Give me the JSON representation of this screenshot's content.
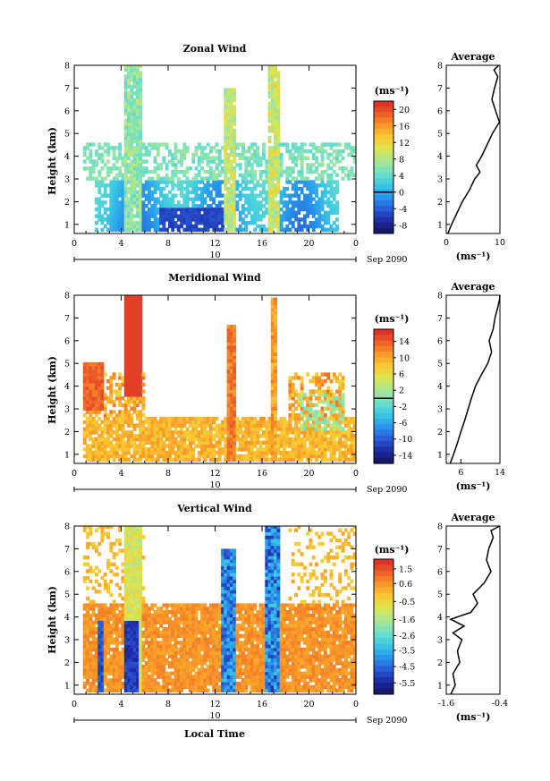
{
  "chart_data": [
    {
      "type": "heatmap",
      "title": "Zonal Wind",
      "ylabel": "Height (km)",
      "x_ticks": [
        "0",
        "4",
        "8",
        "12",
        "16",
        "20",
        "0"
      ],
      "x_range_hours": [
        0,
        24
      ],
      "date_ticks": [
        "10"
      ],
      "date_suffix": "Sep 2090",
      "ylim": [
        0.6,
        8
      ],
      "y_ticks": [
        "1",
        "2",
        "3",
        "4",
        "5",
        "6",
        "7",
        "8"
      ],
      "colorbar": {
        "unit": "(ms⁻¹)",
        "range": [
          -10,
          22
        ],
        "ticks": [
          "20",
          "16",
          "12",
          "8",
          "4",
          "0",
          "-4",
          "-8"
        ],
        "zero_line": 0
      },
      "profile": {
        "title": "Average",
        "xlim": [
          0,
          10
        ],
        "x_ticks": [
          "0",
          "10"
        ],
        "xlabel": "(ms⁻¹)",
        "height": [
          0.6,
          1.0,
          1.5,
          2.0,
          2.5,
          3.0,
          3.3,
          3.6,
          4.0,
          4.5,
          5.0,
          5.5,
          6.0,
          6.5,
          7.0,
          7.5,
          7.8,
          8.0
        ],
        "values": [
          0.3,
          1.0,
          2.0,
          3.0,
          4.3,
          5.3,
          6.3,
          5.6,
          6.6,
          7.6,
          8.6,
          9.9,
          9.2,
          8.5,
          9.0,
          9.6,
          8.9,
          9.8
        ]
      }
    },
    {
      "type": "heatmap",
      "title": "Meridional Wind",
      "ylabel": "Height (km)",
      "x_ticks": [
        "0",
        "4",
        "8",
        "12",
        "16",
        "20",
        "0"
      ],
      "x_range_hours": [
        0,
        24
      ],
      "date_ticks": [
        "10"
      ],
      "date_suffix": "Sep 2090",
      "ylim": [
        0.6,
        8
      ],
      "y_ticks": [
        "1",
        "2",
        "3",
        "4",
        "5",
        "6",
        "7",
        "8"
      ],
      "colorbar": {
        "unit": "(ms⁻¹)",
        "range": [
          -16,
          17
        ],
        "ticks": [
          "14",
          "10",
          "6",
          "2",
          "-2",
          "-6",
          "-10",
          "-14"
        ],
        "zero_line": 0
      },
      "profile": {
        "title": "Average",
        "xlim": [
          3,
          14
        ],
        "x_ticks": [
          "6",
          "14"
        ],
        "xlabel": "(ms⁻¹)",
        "height": [
          0.6,
          1.0,
          1.5,
          2.0,
          2.5,
          3.0,
          3.5,
          4.0,
          4.5,
          5.0,
          5.5,
          6.0,
          6.5,
          7.0,
          7.5,
          7.8,
          8.0
        ],
        "values": [
          3.8,
          4.5,
          5.3,
          6.0,
          6.8,
          7.5,
          8.2,
          9.0,
          10.2,
          11.5,
          12.3,
          11.8,
          12.6,
          13.0,
          13.6,
          13.9,
          14.0
        ]
      }
    },
    {
      "type": "heatmap",
      "title": "Vertical Wind",
      "ylabel": "Height (km)",
      "xlabel": "Local Time",
      "x_ticks": [
        "0",
        "4",
        "8",
        "12",
        "16",
        "20",
        "0"
      ],
      "x_range_hours": [
        0,
        24
      ],
      "date_ticks": [
        "10"
      ],
      "date_suffix": "Sep 2090",
      "ylim": [
        0.6,
        8
      ],
      "y_ticks": [
        "1",
        "2",
        "3",
        "4",
        "5",
        "6",
        "7",
        "8"
      ],
      "colorbar": {
        "unit": "(ms⁻¹)",
        "range": [
          -6.2,
          2.1
        ],
        "ticks": [
          "1.5",
          "0.6",
          "-0.5",
          "-1.6",
          "-2.6",
          "-3.5",
          "-4.5",
          "-5.5"
        ]
      },
      "profile": {
        "title": "Average",
        "xlim": [
          -1.6,
          -0.4
        ],
        "x_ticks": [
          "-1.6",
          "-0.4"
        ],
        "xlabel": "(ms⁻¹)",
        "height": [
          0.6,
          1.0,
          1.5,
          2.0,
          2.5,
          3.0,
          3.3,
          3.6,
          3.9,
          4.2,
          4.6,
          5.0,
          5.5,
          6.0,
          6.5,
          7.0,
          7.5,
          7.8,
          8.0
        ],
        "values": [
          -1.5,
          -1.4,
          -1.45,
          -1.3,
          -1.35,
          -1.25,
          -1.45,
          -1.2,
          -1.5,
          -1.05,
          -0.9,
          -1.0,
          -0.75,
          -0.6,
          -0.7,
          -0.65,
          -0.55,
          -0.6,
          -0.4
        ]
      }
    }
  ]
}
